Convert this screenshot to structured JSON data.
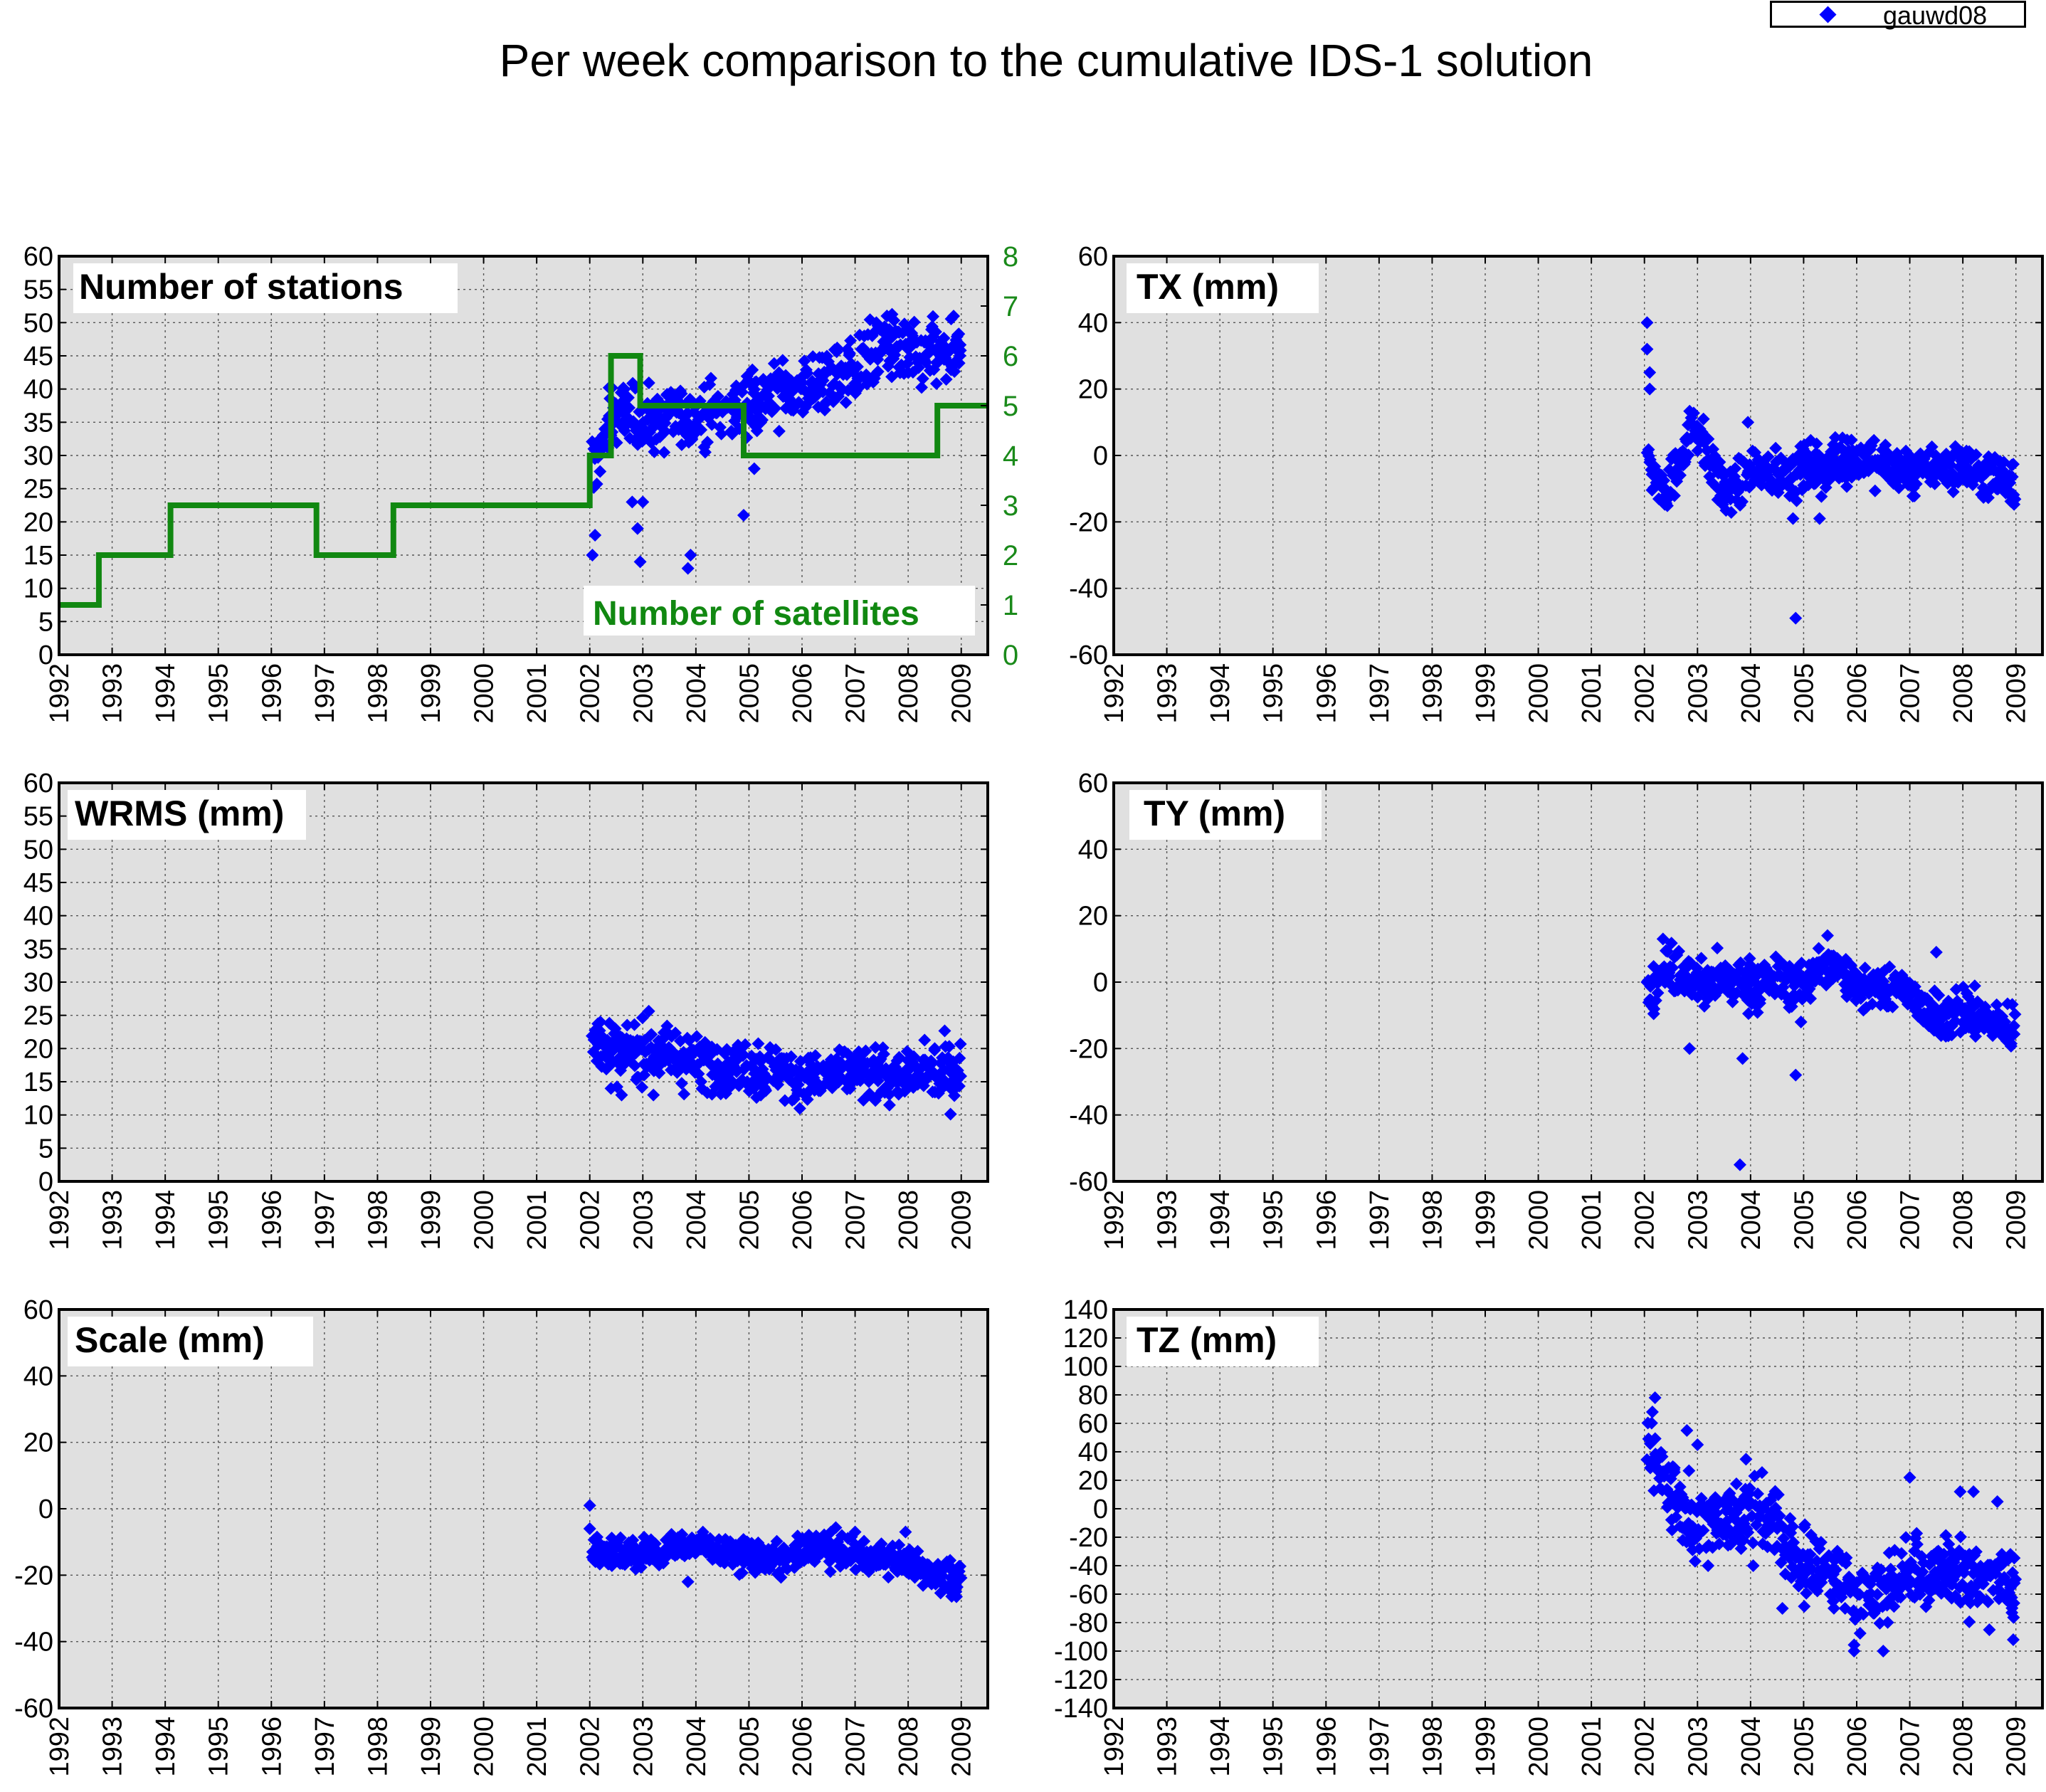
{
  "title": "Per week comparison to the cumulative IDS-1 solution",
  "legend": {
    "label": "gauwd08"
  },
  "colors": {
    "points": "#0000ff",
    "satellites": "#118811",
    "panel_bg": "#e0e0e0",
    "grid": "#555555"
  },
  "chart_data": [
    {
      "id": "stations",
      "type": "scatter",
      "title": "Number of stations",
      "xlim": [
        1992,
        2009.5
      ],
      "ylim": [
        0,
        60
      ],
      "x_ticks": [
        "1992",
        "1993",
        "1994",
        "1995",
        "1996",
        "1997",
        "1998",
        "1999",
        "2000",
        "2001",
        "2002",
        "2003",
        "2004",
        "2005",
        "2006",
        "2007",
        "2008",
        "2009"
      ],
      "y_ticks": [
        0,
        5,
        10,
        15,
        20,
        25,
        30,
        35,
        40,
        45,
        50,
        55,
        60
      ],
      "grid": true,
      "legend": "top-right",
      "trend": [
        [
          2002.05,
          28
        ],
        [
          2002.4,
          36
        ],
        [
          2003.0,
          35
        ],
        [
          2004.0,
          36
        ],
        [
          2005.0,
          38
        ],
        [
          2006.0,
          40
        ],
        [
          2007.0,
          43
        ],
        [
          2007.5,
          47
        ],
        [
          2008.0,
          45
        ],
        [
          2009.0,
          45
        ]
      ],
      "spread": 4,
      "outliers": [
        [
          2002.05,
          15
        ],
        [
          2002.1,
          18
        ],
        [
          2002.95,
          14
        ],
        [
          2002.9,
          19
        ],
        [
          2003.85,
          13
        ],
        [
          2003.9,
          15
        ],
        [
          2004.9,
          21
        ],
        [
          2005.1,
          28
        ],
        [
          2002.8,
          23
        ],
        [
          2003.0,
          23
        ],
        [
          2007.6,
          51
        ],
        [
          2007.4,
          50
        ]
      ],
      "secondary_axis": {
        "label": "Number of satellites",
        "ylim": [
          0,
          8
        ],
        "ticks": [
          0,
          1,
          2,
          3,
          4,
          5,
          6,
          7,
          8
        ],
        "steps": [
          [
            1992,
            1
          ],
          [
            1992.75,
            2
          ],
          [
            1994.1,
            3
          ],
          [
            1996.85,
            2
          ],
          [
            1998.3,
            3
          ],
          [
            2002.0,
            4
          ],
          [
            2002.4,
            6
          ],
          [
            2002.95,
            5
          ],
          [
            2004.9,
            4
          ],
          [
            2008.55,
            5
          ],
          [
            2009.5,
            5
          ]
        ]
      }
    },
    {
      "id": "tx",
      "type": "scatter",
      "title": "TX (mm)",
      "xlim": [
        1992,
        2009.5
      ],
      "ylim": [
        -60,
        60
      ],
      "x_ticks": [
        "1992",
        "1993",
        "1994",
        "1995",
        "1996",
        "1997",
        "1998",
        "1999",
        "2000",
        "2001",
        "2002",
        "2003",
        "2004",
        "2005",
        "2006",
        "2007",
        "2008",
        "2009"
      ],
      "y_ticks": [
        -60,
        -40,
        -20,
        0,
        20,
        40,
        60
      ],
      "grid": true,
      "trend": [
        [
          2002.05,
          0
        ],
        [
          2002.4,
          -12
        ],
        [
          2002.95,
          10
        ],
        [
          2003.5,
          -12
        ],
        [
          2004.0,
          -5
        ],
        [
          2005.0,
          -5
        ],
        [
          2006.0,
          0
        ],
        [
          2007.0,
          -5
        ],
        [
          2008.0,
          -3
        ],
        [
          2009.0,
          -8
        ]
      ],
      "spread": 6,
      "outliers": [
        [
          2002.05,
          40
        ],
        [
          2002.05,
          32
        ],
        [
          2002.1,
          25
        ],
        [
          2002.1,
          20
        ],
        [
          2004.85,
          -49
        ],
        [
          2004.8,
          -19
        ],
        [
          2003.95,
          10
        ],
        [
          2005.3,
          -19
        ]
      ]
    },
    {
      "id": "wrms",
      "type": "scatter",
      "title": "WRMS (mm)",
      "xlim": [
        1992,
        2009.5
      ],
      "ylim": [
        0,
        60
      ],
      "x_ticks": [
        "1992",
        "1993",
        "1994",
        "1995",
        "1996",
        "1997",
        "1998",
        "1999",
        "2000",
        "2001",
        "2002",
        "2003",
        "2004",
        "2005",
        "2006",
        "2007",
        "2008",
        "2009"
      ],
      "y_ticks": [
        0,
        5,
        10,
        15,
        20,
        25,
        30,
        35,
        40,
        45,
        50,
        55,
        60
      ],
      "grid": true,
      "trend": [
        [
          2002.05,
          21
        ],
        [
          2002.6,
          19
        ],
        [
          2003.0,
          20
        ],
        [
          2004.0,
          18
        ],
        [
          2005.0,
          17
        ],
        [
          2006.0,
          16
        ],
        [
          2007.0,
          16
        ],
        [
          2008.0,
          16
        ],
        [
          2009.0,
          17
        ]
      ],
      "spread": 3.5,
      "outliers": [
        [
          2002.2,
          24
        ],
        [
          2002.4,
          14
        ],
        [
          2002.6,
          13
        ],
        [
          2003.2,
          13
        ],
        [
          2008.5,
          20
        ]
      ]
    },
    {
      "id": "ty",
      "type": "scatter",
      "title": "TY (mm)",
      "xlim": [
        1992,
        2009.5
      ],
      "ylim": [
        -60,
        60
      ],
      "x_ticks": [
        "1992",
        "1993",
        "1994",
        "1995",
        "1996",
        "1997",
        "1998",
        "1999",
        "2000",
        "2001",
        "2002",
        "2003",
        "2004",
        "2005",
        "2006",
        "2007",
        "2008",
        "2009"
      ],
      "y_ticks": [
        -60,
        -40,
        -20,
        0,
        20,
        40,
        60
      ],
      "grid": true,
      "trend": [
        [
          2002.05,
          -5
        ],
        [
          2002.4,
          5
        ],
        [
          2003.0,
          0
        ],
        [
          2004.0,
          0
        ],
        [
          2005.0,
          0
        ],
        [
          2005.5,
          5
        ],
        [
          2006.0,
          0
        ],
        [
          2007.0,
          -2
        ],
        [
          2007.5,
          -12
        ],
        [
          2008.0,
          -8
        ],
        [
          2009.0,
          -15
        ]
      ],
      "spread": 6,
      "outliers": [
        [
          2003.8,
          -55
        ],
        [
          2003.85,
          -23
        ],
        [
          2004.85,
          -28
        ],
        [
          2004.95,
          -12
        ],
        [
          2002.85,
          -20
        ],
        [
          2002.35,
          13
        ],
        [
          2005.45,
          14
        ],
        [
          2007.5,
          9
        ]
      ]
    },
    {
      "id": "scale",
      "type": "scatter",
      "title": "Scale (mm)",
      "xlim": [
        1992,
        2009.5
      ],
      "ylim": [
        -60,
        60
      ],
      "x_ticks": [
        "1992",
        "1993",
        "1994",
        "1995",
        "1996",
        "1997",
        "1998",
        "1999",
        "2000",
        "2001",
        "2002",
        "2003",
        "2004",
        "2005",
        "2006",
        "2007",
        "2008",
        "2009"
      ],
      "y_ticks": [
        -60,
        -40,
        -20,
        0,
        20,
        40,
        60
      ],
      "grid": true,
      "trend": [
        [
          2002.05,
          -12
        ],
        [
          2003.0,
          -14
        ],
        [
          2004.0,
          -11
        ],
        [
          2005.0,
          -14
        ],
        [
          2005.6,
          -16
        ],
        [
          2006.2,
          -11
        ],
        [
          2007.0,
          -14
        ],
        [
          2008.0,
          -16
        ],
        [
          2008.5,
          -19
        ],
        [
          2009.0,
          -22
        ]
      ],
      "spread": 4,
      "outliers": [
        [
          2002.0,
          1
        ],
        [
          2002.0,
          -6
        ],
        [
          2007.0,
          -7
        ],
        [
          2007.95,
          -7
        ],
        [
          2008.9,
          -25
        ],
        [
          2003.85,
          -22
        ]
      ]
    },
    {
      "id": "tz",
      "type": "scatter",
      "title": "TZ (mm)",
      "xlim": [
        1992,
        2009.5
      ],
      "ylim": [
        -140,
        140
      ],
      "x_ticks": [
        "1992",
        "1993",
        "1994",
        "1995",
        "1996",
        "1997",
        "1998",
        "1999",
        "2000",
        "2001",
        "2002",
        "2003",
        "2004",
        "2005",
        "2006",
        "2007",
        "2008",
        "2009"
      ],
      "y_ticks": [
        -140,
        -120,
        -100,
        -80,
        -60,
        -40,
        -20,
        0,
        20,
        40,
        60,
        80,
        100,
        120,
        140
      ],
      "grid": true,
      "trend": [
        [
          2002.05,
          45
        ],
        [
          2002.4,
          20
        ],
        [
          2003.0,
          -10
        ],
        [
          2004.0,
          0
        ],
        [
          2004.5,
          -10
        ],
        [
          2005.0,
          -45
        ],
        [
          2005.5,
          -40
        ],
        [
          2006.0,
          -65
        ],
        [
          2006.5,
          -55
        ],
        [
          2007.0,
          -45
        ],
        [
          2008.0,
          -45
        ],
        [
          2009.0,
          -50
        ]
      ],
      "spread": 22,
      "outliers": [
        [
          2002.2,
          78
        ],
        [
          2002.15,
          68
        ],
        [
          2002.8,
          55
        ],
        [
          2003.0,
          45
        ],
        [
          2003.2,
          -40
        ],
        [
          2004.05,
          -40
        ],
        [
          2005.95,
          -100
        ],
        [
          2006.5,
          -100
        ],
        [
          2007.0,
          22
        ],
        [
          2007.95,
          12
        ],
        [
          2008.2,
          12
        ],
        [
          2008.5,
          -85
        ],
        [
          2008.65,
          5
        ],
        [
          2008.95,
          -92
        ],
        [
          2004.6,
          -70
        ]
      ]
    }
  ]
}
